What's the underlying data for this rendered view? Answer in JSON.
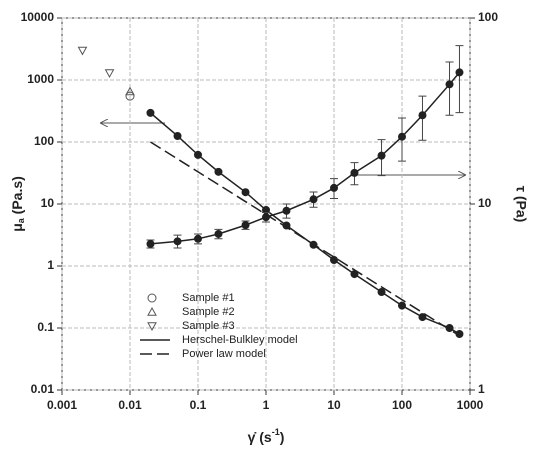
{
  "chart_data": {
    "type": "scatter",
    "xlabel": [
      "γ̇ (s",
      "-1",
      ")"
    ],
    "ylabel": [
      "μ",
      "a",
      " (Pa.s)"
    ],
    "y2label": "τ (Pa)",
    "xscale": "log",
    "yscale": "log",
    "y2scale": "log",
    "xlim": [
      0.001,
      1000
    ],
    "xticks": [
      0.001,
      0.01,
      0.1,
      1,
      10,
      100,
      1000
    ],
    "ylim": [
      0.01,
      10000
    ],
    "yticks": [
      0.01,
      0.1,
      1,
      10,
      100,
      1000,
      10000
    ],
    "y2lim": [
      1,
      100
    ],
    "y2ticks": [
      1,
      10,
      100
    ],
    "grid": true,
    "legend": "lower left",
    "series": [
      {
        "name": "Sample #1",
        "marker": "circle",
        "color": "#555555",
        "x": [
          0.01
        ],
        "values": [
          550
        ]
      },
      {
        "name": "Sample #2",
        "marker": "triangle-up",
        "color": "#555555",
        "x": [
          0.01
        ],
        "values": [
          650
        ]
      },
      {
        "name": "Sample #3",
        "marker": "triangle-down",
        "color": "#555555",
        "x": [
          0.002,
          0.005
        ],
        "values": [
          3000,
          1300
        ]
      },
      {
        "name": "Herschel-Bulkley model",
        "line": "solid",
        "color": "#222222",
        "x": [
          0.02,
          0.05,
          0.1,
          0.2,
          0.5,
          1,
          2,
          5,
          10,
          20,
          50,
          100,
          200,
          500,
          700
        ],
        "values": [
          295,
          125,
          62,
          33,
          15.5,
          8,
          4.5,
          2.2,
          1.25,
          0.74,
          0.38,
          0.23,
          0.15,
          0.1,
          0.08
        ]
      },
      {
        "name": "Power law model",
        "line": "dash",
        "color": "#222222",
        "x": [
          0.02,
          700
        ],
        "values": [
          100,
          0.075
        ]
      },
      {
        "marker": "filled",
        "color": "#222222",
        "x": [
          0.02,
          0.05,
          0.1,
          0.2,
          0.5,
          1,
          2,
          5,
          10,
          20,
          50,
          100,
          200,
          500,
          700
        ],
        "values": [
          295,
          125,
          62,
          33,
          15.5,
          8,
          4.5,
          2.2,
          1.25,
          0.74,
          0.38,
          0.23,
          0.15,
          0.1,
          0.08
        ]
      },
      {
        "marker": "filled",
        "axis": "y2",
        "color": "#222222",
        "x": [
          0.02,
          0.05,
          0.1,
          0.2,
          0.5,
          1,
          2,
          5,
          10,
          20,
          50,
          100,
          200,
          500,
          700
        ],
        "values": [
          6.1,
          6.3,
          6.5,
          6.9,
          7.7,
          8.5,
          9.2,
          10.6,
          12.2,
          14.7,
          18.2,
          23,
          30,
          44,
          51
        ],
        "errors": [
          0.3,
          0.5,
          0.4,
          0.4,
          0.4,
          0.5,
          0.8,
          1,
          1.5,
          2,
          4,
          6,
          8,
          14,
          20
        ]
      },
      {
        "line": "solid",
        "axis": "y2",
        "color": "#222222",
        "x": [
          0.02,
          0.05,
          0.1,
          0.2,
          0.5,
          1,
          2,
          5,
          10,
          20,
          50,
          100,
          200,
          500,
          700
        ],
        "values": [
          6.1,
          6.3,
          6.5,
          6.9,
          7.7,
          8.5,
          9.2,
          10.6,
          12.2,
          14.7,
          18.2,
          23,
          30,
          44,
          51
        ]
      }
    ]
  }
}
